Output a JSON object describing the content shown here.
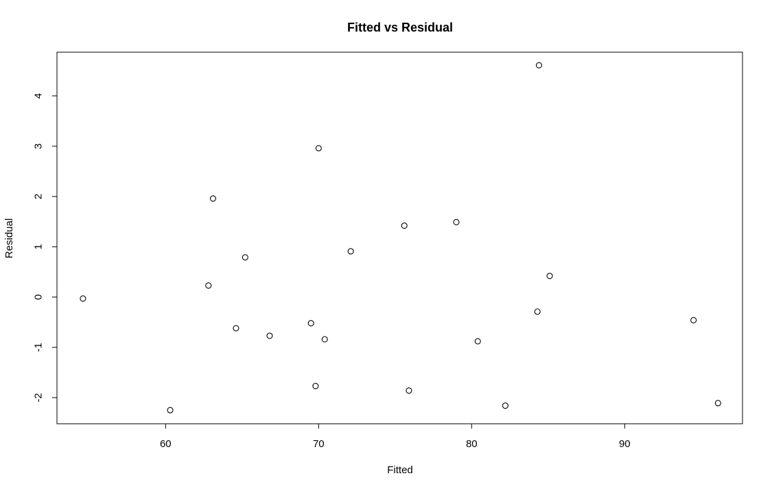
{
  "chart_data": {
    "type": "scatter",
    "title": "Fitted vs Residual",
    "xlabel": "Fitted",
    "ylabel": "Residual",
    "xlim": [
      52.9,
      97.7
    ],
    "ylim": [
      -2.52,
      4.87
    ],
    "x_ticks": [
      60,
      70,
      80,
      90
    ],
    "y_ticks": [
      -2,
      -1,
      0,
      1,
      2,
      3,
      4
    ],
    "grid": false,
    "points": [
      {
        "x": 54.6,
        "y": -0.03
      },
      {
        "x": 60.3,
        "y": -2.25
      },
      {
        "x": 62.8,
        "y": 0.23
      },
      {
        "x": 63.1,
        "y": 1.96
      },
      {
        "x": 64.6,
        "y": -0.62
      },
      {
        "x": 65.2,
        "y": 0.79
      },
      {
        "x": 66.8,
        "y": -0.77
      },
      {
        "x": 69.5,
        "y": -0.52
      },
      {
        "x": 69.8,
        "y": -1.77
      },
      {
        "x": 70.0,
        "y": 2.96
      },
      {
        "x": 70.4,
        "y": -0.84
      },
      {
        "x": 72.1,
        "y": 0.91
      },
      {
        "x": 75.6,
        "y": 1.42
      },
      {
        "x": 75.9,
        "y": -1.86
      },
      {
        "x": 79.0,
        "y": 1.49
      },
      {
        "x": 80.4,
        "y": -0.88
      },
      {
        "x": 82.2,
        "y": -2.16
      },
      {
        "x": 84.3,
        "y": -0.29
      },
      {
        "x": 84.4,
        "y": 4.61
      },
      {
        "x": 85.1,
        "y": 0.42
      },
      {
        "x": 94.5,
        "y": -0.46
      },
      {
        "x": 96.1,
        "y": -2.11
      }
    ]
  }
}
